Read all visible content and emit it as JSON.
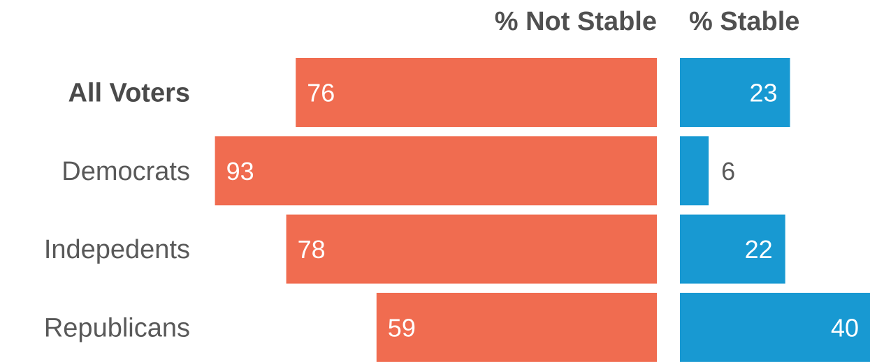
{
  "chart_data": {
    "type": "bar",
    "orientation": "horizontal-diverging",
    "categories": [
      "All Voters",
      "Democrats",
      "Indepedents",
      "Republicans"
    ],
    "emphasized_category": "All Voters",
    "series": [
      {
        "name": "% Not Stable",
        "values": [
          76,
          93,
          78,
          59
        ],
        "color": "#f06c50"
      },
      {
        "name": "% Stable",
        "values": [
          23,
          6,
          22,
          40
        ],
        "color": "#1899d2"
      }
    ],
    "xlim": [
      0,
      100
    ],
    "grid": false,
    "legend": "top-column-headers"
  }
}
